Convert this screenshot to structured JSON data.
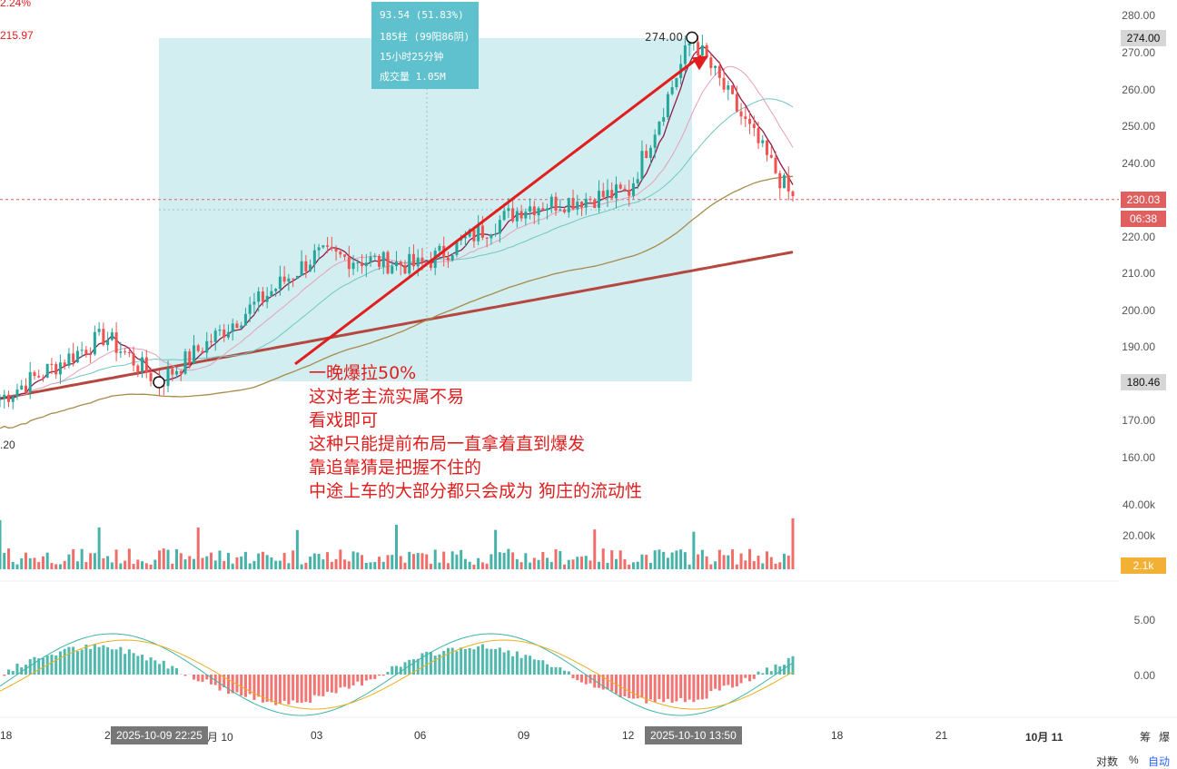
{
  "header_left": {
    "pct": "2.24%",
    "price": "215.97",
    "low": ".20"
  },
  "measure_box": {
    "line1": "93.54 (51.83%)",
    "line2": "185柱 (99阳86阴)",
    "line3": "15小时25分钟",
    "line4": "成交量 1.05M"
  },
  "high_label": "274.00",
  "annotation": [
    "一晚爆拉50%",
    "这对老主流实属不易",
    "看戏即可",
    "这种只能提前布局一直拿着直到爆发",
    "靠追靠猜是把握不住的",
    "中途上车的大部分都只会成为 狗庄的流动性"
  ],
  "price_axis": [
    "280.00",
    "270.00",
    "260.00",
    "250.00",
    "240.00",
    "220.00",
    "210.00",
    "200.00",
    "190.00",
    "170.00",
    "160.00"
  ],
  "price_tags": {
    "high": "274.00",
    "last": "230.03",
    "countdown": "06:38",
    "low": "180.46"
  },
  "volume_axis": [
    "40.00k",
    "20.00k"
  ],
  "volume_tag": "2.1k",
  "macd_axis": [
    "5.00",
    "0.00"
  ],
  "time_axis": {
    "labels": [
      "18",
      "2",
      "月 10",
      "03",
      "06",
      "09",
      "12",
      "18",
      "21",
      "10月 11"
    ],
    "start_tag": "2025-10-09 22:25",
    "end_tag": "2025-10-10 13:50"
  },
  "corner": {
    "screenshot": "爆",
    "fib": "筹"
  },
  "bottom_bar": {
    "log": "对数",
    "pct": "%",
    "auto": "自动"
  },
  "chart_data": {
    "type": "line",
    "candles": {
      "count": 185,
      "start": "2025-10-09 22:25",
      "end": "2025-10-10 13:50",
      "low": 180.46,
      "high": 274.0,
      "last": 230.03,
      "change": 93.54,
      "change_pct": 51.83,
      "bull": 99,
      "bear": 86,
      "volume": "1.05M"
    },
    "price_path": [
      {
        "label": "18",
        "price": 176
      },
      {
        "label": "2",
        "price": 193
      },
      {
        "label": "2025-10-09 22:25",
        "price": 180.46
      },
      {
        "label": "03",
        "price": 215
      },
      {
        "label": "06",
        "price": 212
      },
      {
        "label": "09",
        "price": 228
      },
      {
        "label": "12",
        "price": 232
      },
      {
        "label": "2025-10-10 13:50",
        "price": 274.0
      },
      {
        "label": "last",
        "price": 230.03
      }
    ],
    "ylim": [
      160,
      280
    ],
    "colors": {
      "up": "#26a69a",
      "down": "#ef5350",
      "measure": "#5fc1cd",
      "annotation": "#e11d1d"
    }
  }
}
